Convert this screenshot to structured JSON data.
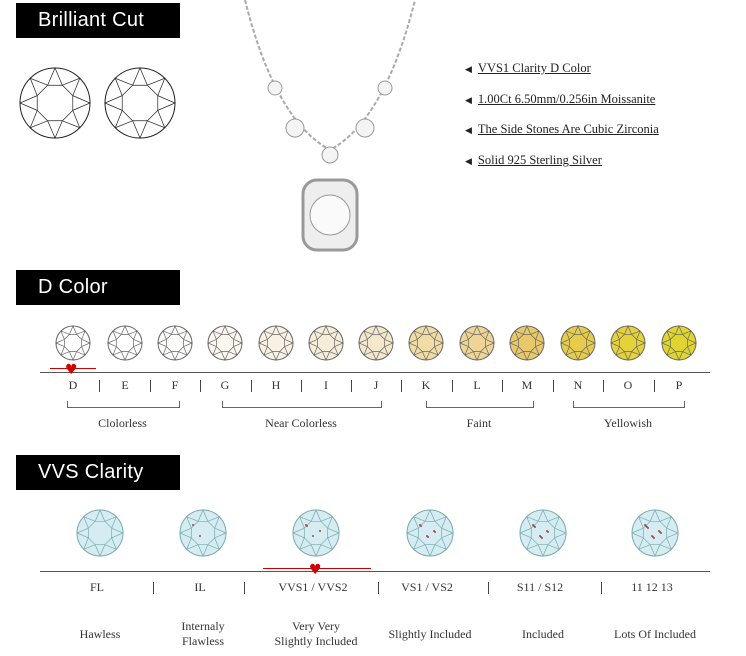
{
  "sections": {
    "brilliant_cut": "Brilliant Cut",
    "d_color": "D Color",
    "vvs_clarity": "VVS Clarity"
  },
  "features": [
    "VVS1 Clarity D Color",
    "1.00Ct 6.50mm/0.256in Moissanite",
    "The Side Stones Are Cubic Zirconia",
    "Solid 925 Sterling Silver"
  ],
  "bullet_icon": "left-triangle-icon",
  "color_scale": {
    "grades": [
      "D",
      "E",
      "F",
      "G",
      "H",
      "I",
      "J",
      "K",
      "L",
      "M",
      "N",
      "O",
      "P"
    ],
    "stone_colors": [
      "#ffffff",
      "#ffffff",
      "#fdfdfb",
      "#faf7f0",
      "#f8f1e4",
      "#f6edd8",
      "#f4e8cc",
      "#f0dca4",
      "#eed596",
      "#e8c868",
      "#e6cc4a",
      "#e5d23a",
      "#e0d52e"
    ],
    "groups": [
      "Clolorless",
      "Near Colorless",
      "Faint",
      "Yellowish"
    ],
    "selected": "D"
  },
  "clarity_scale": {
    "grades": [
      "FL",
      "IL",
      "VVS1 / VVS2",
      "VS1 / VS2",
      "S11 / S12",
      "11 12 13"
    ],
    "descriptions": [
      [
        "Hawless"
      ],
      [
        "Internaly",
        "Flawless"
      ],
      [
        "Very Very",
        "Slightly Included"
      ],
      [
        "Slightly Included"
      ],
      [
        "Included"
      ],
      [
        "Lots Of Included"
      ]
    ],
    "selected": "VVS1 / VVS2",
    "stone_color": "#d4ecf2"
  },
  "accent": "#d00000"
}
